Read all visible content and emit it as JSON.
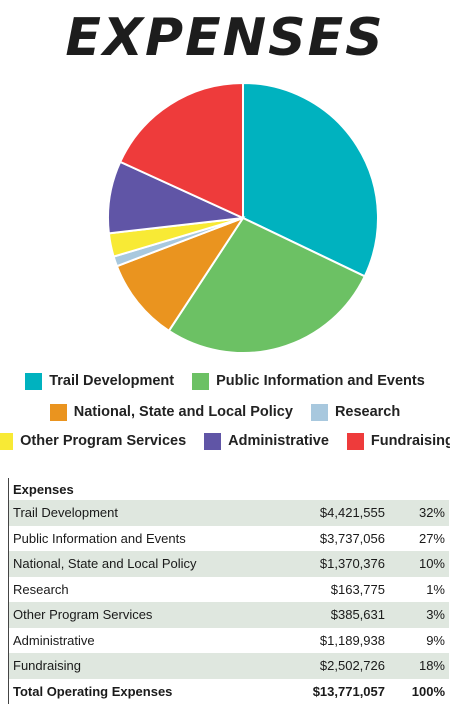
{
  "title": "EXPENSES",
  "colors": {
    "trail": "#00b2bf",
    "public": "#6cc164",
    "national": "#ea941f",
    "research": "#a8c8de",
    "other": "#f8ea35",
    "admin": "#6055a6",
    "fundraising": "#ee3b3b"
  },
  "legend": [
    {
      "label": "Trail Development",
      "color_key": "trail"
    },
    {
      "label": "Public Information and Events",
      "color_key": "public"
    },
    {
      "label": "National, State and Local Policy",
      "color_key": "national"
    },
    {
      "label": "Research",
      "color_key": "research"
    },
    {
      "label": "Other Program Services",
      "color_key": "other"
    },
    {
      "label": "Administrative",
      "color_key": "admin"
    },
    {
      "label": "Fundraising",
      "color_key": "fundraising"
    }
  ],
  "table": {
    "header": "Expenses",
    "rows": [
      {
        "label": "Trail Development",
        "amount": "$4,421,555",
        "pct": "32%"
      },
      {
        "label": "Public Information and Events",
        "amount": "$3,737,056",
        "pct": "27%"
      },
      {
        "label": "National, State and Local Policy",
        "amount": "$1,370,376",
        "pct": "10%"
      },
      {
        "label": "Research",
        "amount": "$163,775",
        "pct": "1%"
      },
      {
        "label": "Other Program Services",
        "amount": "$385,631",
        "pct": "3%"
      },
      {
        "label": "Administrative",
        "amount": "$1,189,938",
        "pct": "9%"
      },
      {
        "label": "Fundraising",
        "amount": "$2,502,726",
        "pct": "18%"
      }
    ],
    "total": {
      "label": "Total Operating Expenses",
      "amount": "$13,771,057",
      "pct": "100%"
    }
  },
  "chart_data": {
    "type": "pie",
    "title": "EXPENSES",
    "categories": [
      "Trail Development",
      "Public Information and Events",
      "National, State and Local Policy",
      "Research",
      "Other Program Services",
      "Administrative",
      "Fundraising"
    ],
    "values": [
      4421555,
      3737056,
      1370376,
      163775,
      385631,
      1189938,
      2502726
    ],
    "percent_labels": [
      "32%",
      "27%",
      "10%",
      "1%",
      "3%",
      "9%",
      "18%"
    ],
    "colors": [
      "#00b2bf",
      "#6cc164",
      "#ea941f",
      "#a8c8de",
      "#f8ea35",
      "#6055a6",
      "#ee3b3b"
    ],
    "legend_position": "bottom"
  }
}
